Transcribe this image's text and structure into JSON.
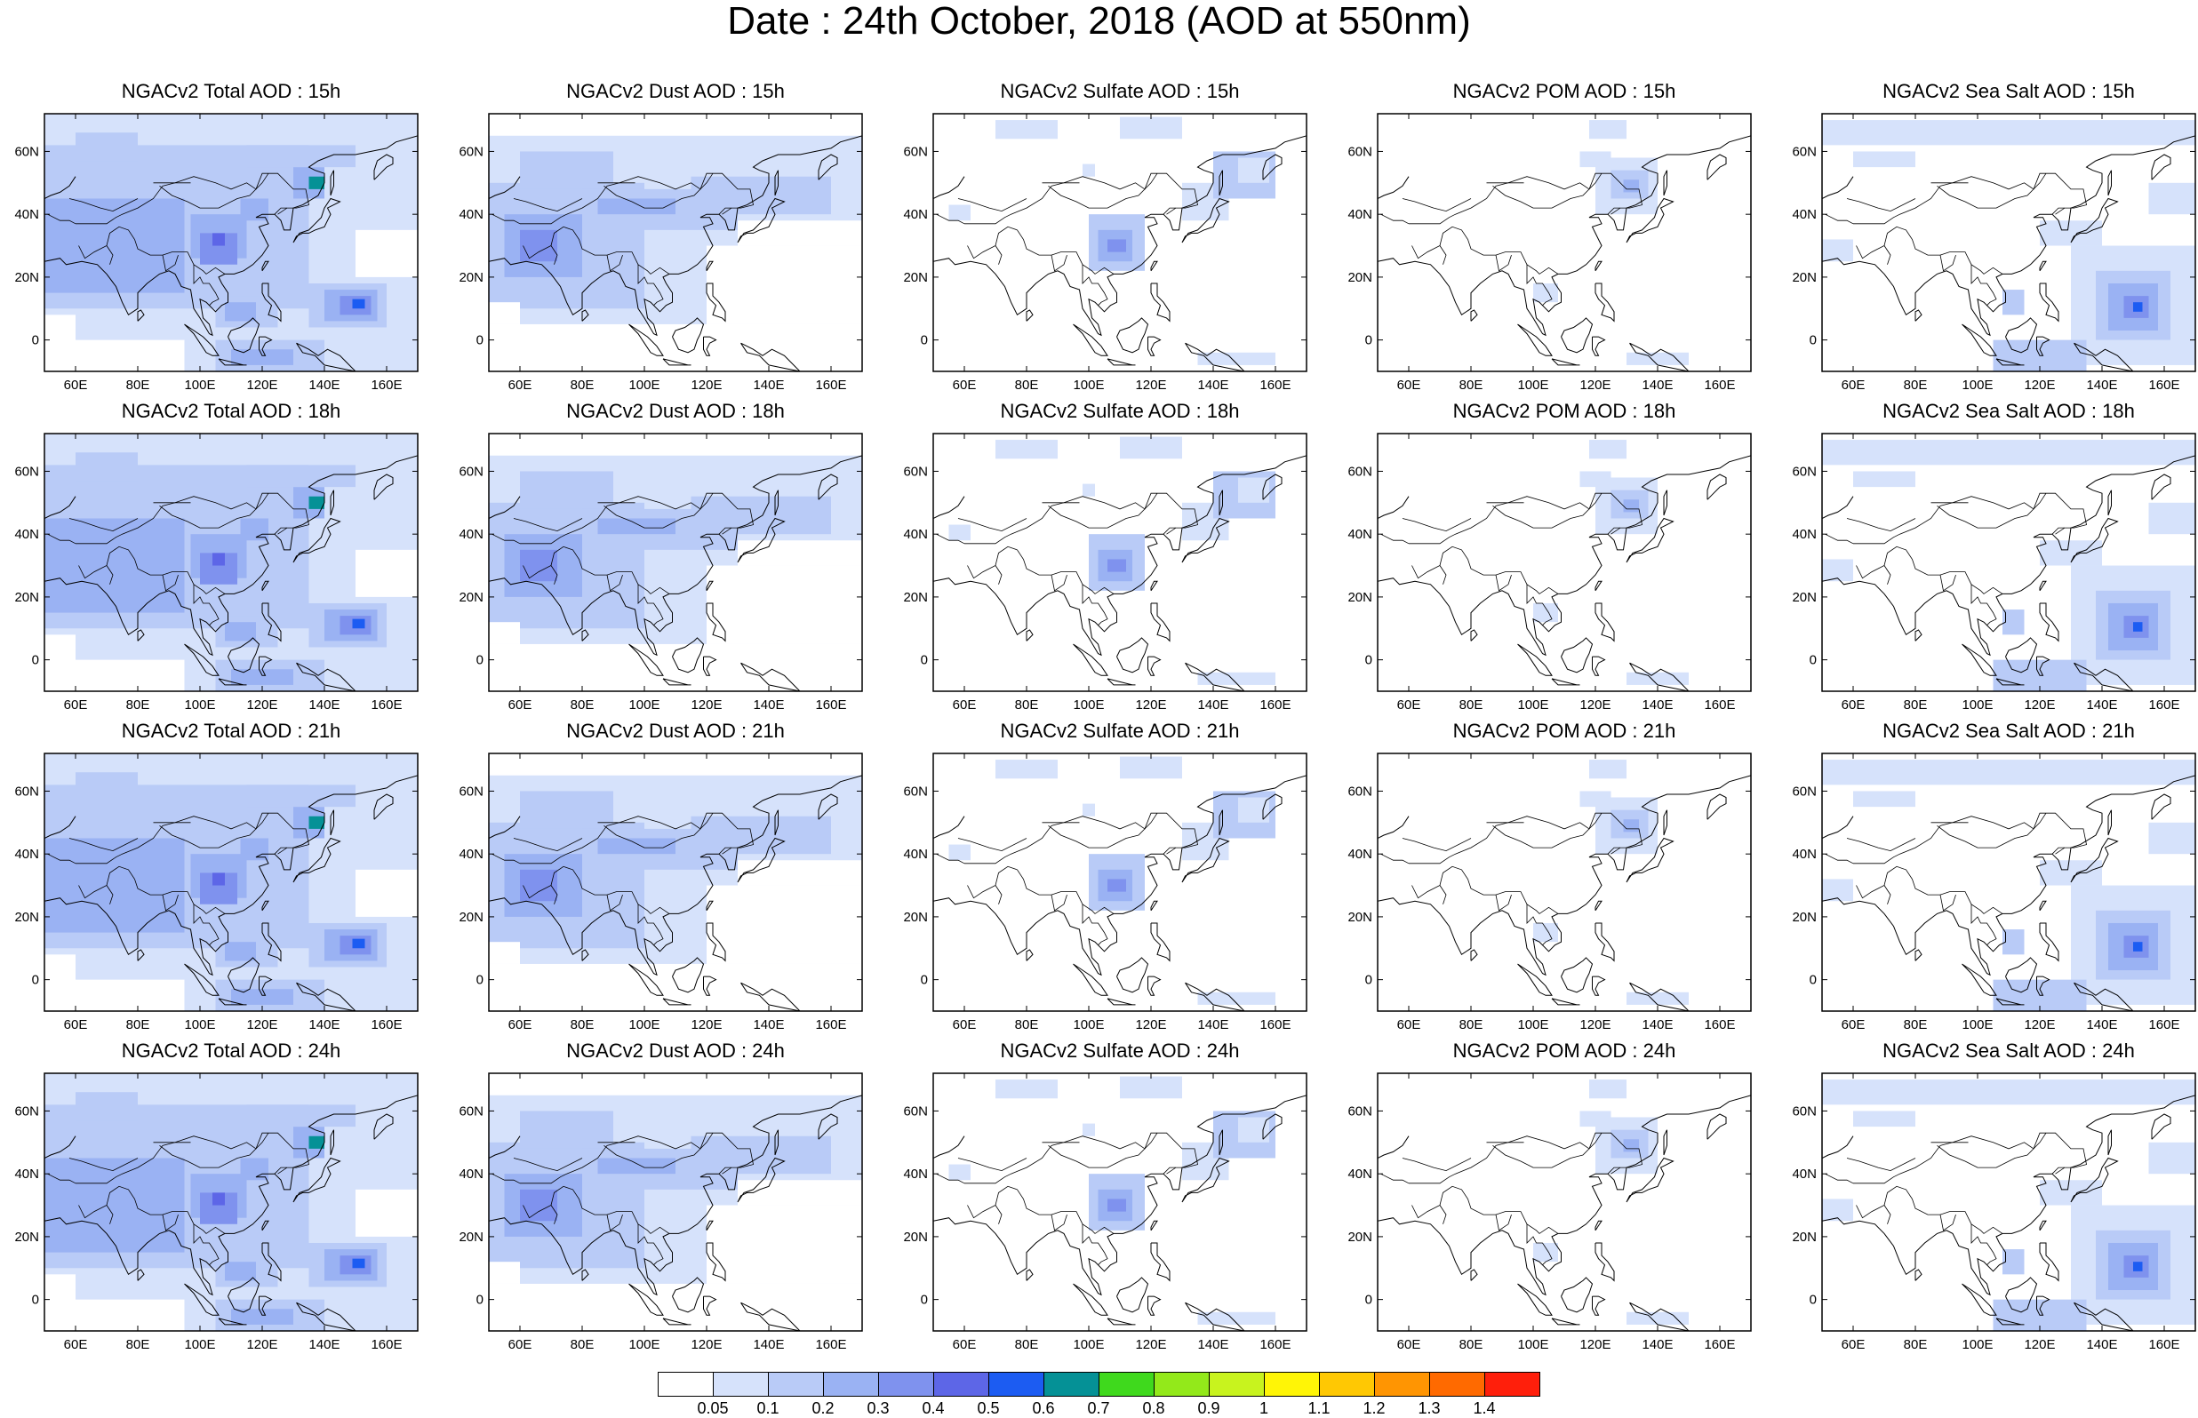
{
  "title": "Date : 24th October, 2018 (AOD at 550nm)",
  "axis": {
    "lon_labels": [
      "60E",
      "80E",
      "100E",
      "120E",
      "140E",
      "160E"
    ],
    "lat_labels": [
      "60N",
      "40N",
      "20N",
      "0"
    ]
  },
  "panels": [
    [
      "NGACv2 Total AOD : 15h",
      "NGACv2 Dust AOD : 15h",
      "NGACv2 Sulfate AOD : 15h",
      "NGACv2 POM AOD : 15h",
      "NGACv2 Sea Salt AOD : 15h"
    ],
    [
      "NGACv2 Total AOD : 18h",
      "NGACv2 Dust AOD : 18h",
      "NGACv2 Sulfate AOD : 18h",
      "NGACv2 POM AOD : 18h",
      "NGACv2 Sea Salt AOD : 18h"
    ],
    [
      "NGACv2 Total AOD : 21h",
      "NGACv2 Dust AOD : 21h",
      "NGACv2 Sulfate AOD : 21h",
      "NGACv2 POM AOD : 21h",
      "NGACv2 Sea Salt AOD : 21h"
    ],
    [
      "NGACv2 Total AOD : 24h",
      "NGACv2 Dust AOD : 24h",
      "NGACv2 Sulfate AOD : 24h",
      "NGACv2 POM AOD : 24h",
      "NGACv2 Sea Salt  AOD : 24h"
    ]
  ],
  "colorbar": {
    "labels": [
      "0.05",
      "0.1",
      "0.2",
      "0.3",
      "0.4",
      "0.5",
      "0.6",
      "0.7",
      "0.8",
      "0.9",
      "1",
      "1.1",
      "1.2",
      "1.3",
      "1.4"
    ],
    "colors": [
      "#ffffff",
      "#d6e2fb",
      "#b9cbf7",
      "#9ab2f3",
      "#7f92ee",
      "#5d66e7",
      "#1c5cf2",
      "#059196",
      "#3fd91d",
      "#93e91a",
      "#c8f31e",
      "#fff506",
      "#ffc803",
      "#ff9502",
      "#ff6a00",
      "#ff1f0b"
    ]
  }
}
